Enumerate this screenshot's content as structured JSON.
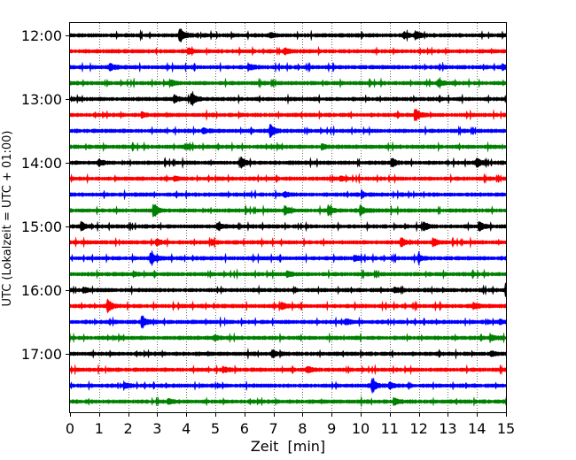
{
  "chart_data": {
    "type": "line",
    "title": "",
    "xlabel": "Zeit  [min]",
    "ylabel": "UTC (Lokalzeit = UTC + 01:00)",
    "xlim": [
      0,
      15
    ],
    "x_ticks": [
      0,
      1,
      2,
      3,
      4,
      5,
      6,
      7,
      8,
      9,
      10,
      11,
      12,
      13,
      14,
      15
    ],
    "y_tick_labels": [
      "12:00",
      "13:00",
      "14:00",
      "15:00",
      "16:00",
      "17:00"
    ],
    "grid": "vertical dotted at each minute",
    "trace_interval_min": 15,
    "trace_colors": [
      "#000000",
      "#ff0000",
      "#0000ff",
      "#008000"
    ],
    "series": [
      {
        "start": "12:00",
        "color": "#000000",
        "events": [
          [
            3.8,
            1.0
          ],
          [
            11.9,
            0.6
          ],
          [
            6.9,
            0.35
          ],
          [
            11.5,
            0.4
          ]
        ]
      },
      {
        "start": "12:15",
        "color": "#ff0000",
        "events": [
          [
            7.4,
            0.35
          ],
          [
            4.1,
            0.3
          ]
        ]
      },
      {
        "start": "12:30",
        "color": "#0000ff",
        "events": [
          [
            1.4,
            0.4
          ],
          [
            14.9,
            0.4
          ],
          [
            6.2,
            0.3
          ]
        ]
      },
      {
        "start": "12:45",
        "color": "#008000",
        "events": [
          [
            12.7,
            0.4
          ],
          [
            3.5,
            0.3
          ]
        ]
      },
      {
        "start": "13:00",
        "color": "#000000",
        "events": [
          [
            4.2,
            0.8
          ],
          [
            3.6,
            0.5
          ]
        ]
      },
      {
        "start": "13:15",
        "color": "#ff0000",
        "events": [
          [
            11.9,
            0.9
          ],
          [
            2.5,
            0.3
          ]
        ]
      },
      {
        "start": "13:30",
        "color": "#0000ff",
        "events": [
          [
            6.9,
            1.0
          ],
          [
            4.6,
            0.3
          ]
        ]
      },
      {
        "start": "13:45",
        "color": "#008000",
        "events": [
          [
            4.0,
            0.3
          ],
          [
            8.7,
            0.3
          ]
        ]
      },
      {
        "start": "14:00",
        "color": "#000000",
        "events": [
          [
            5.9,
            0.7
          ],
          [
            14.0,
            0.7
          ],
          [
            11.1,
            0.5
          ],
          [
            1.0,
            0.4
          ]
        ]
      },
      {
        "start": "14:15",
        "color": "#ff0000",
        "events": [
          [
            3.6,
            0.3
          ],
          [
            9.3,
            0.3
          ]
        ]
      },
      {
        "start": "14:30",
        "color": "#0000ff",
        "events": [
          [
            7.4,
            0.3
          ]
        ]
      },
      {
        "start": "14:45",
        "color": "#008000",
        "events": [
          [
            2.9,
            0.9
          ],
          [
            8.9,
            0.7
          ],
          [
            10.0,
            0.7
          ],
          [
            7.4,
            0.6
          ]
        ]
      },
      {
        "start": "15:00",
        "color": "#000000",
        "events": [
          [
            0.4,
            0.6
          ],
          [
            14.1,
            0.7
          ],
          [
            5.1,
            0.4
          ],
          [
            12.2,
            0.5
          ]
        ]
      },
      {
        "start": "15:15",
        "color": "#ff0000",
        "events": [
          [
            11.4,
            0.7
          ],
          [
            12.5,
            0.5
          ],
          [
            3.0,
            0.4
          ],
          [
            4.9,
            0.3
          ]
        ]
      },
      {
        "start": "15:30",
        "color": "#0000ff",
        "events": [
          [
            2.8,
            0.8
          ],
          [
            9.8,
            0.4
          ],
          [
            12.0,
            0.4
          ]
        ]
      },
      {
        "start": "15:45",
        "color": "#008000",
        "events": [
          [
            7.5,
            0.4
          ],
          [
            2.2,
            0.3
          ]
        ]
      },
      {
        "start": "16:00",
        "color": "#000000",
        "events": [
          [
            0.5,
            0.3
          ],
          [
            11.2,
            0.3
          ],
          [
            15.0,
            0.4
          ]
        ]
      },
      {
        "start": "16:15",
        "color": "#ff0000",
        "events": [
          [
            1.3,
            0.9
          ],
          [
            7.3,
            0.4
          ],
          [
            13.9,
            0.4
          ]
        ]
      },
      {
        "start": "16:30",
        "color": "#0000ff",
        "events": [
          [
            2.5,
            0.8
          ],
          [
            9.5,
            0.4
          ],
          [
            14.8,
            0.3
          ]
        ]
      },
      {
        "start": "16:45",
        "color": "#008000",
        "events": [
          [
            14.5,
            0.4
          ],
          [
            5.0,
            0.3
          ]
        ]
      },
      {
        "start": "17:00",
        "color": "#000000",
        "events": [
          [
            7.0,
            0.4
          ],
          [
            14.5,
            0.4
          ]
        ]
      },
      {
        "start": "17:15",
        "color": "#ff0000",
        "events": [
          [
            8.2,
            0.4
          ],
          [
            5.3,
            0.3
          ]
        ]
      },
      {
        "start": "17:30",
        "color": "#0000ff",
        "events": [
          [
            10.4,
            0.9
          ],
          [
            1.9,
            0.3
          ],
          [
            11.0,
            0.4
          ]
        ]
      },
      {
        "start": "17:45",
        "color": "#008000",
        "events": [
          [
            3.4,
            0.3
          ],
          [
            11.2,
            0.3
          ]
        ]
      }
    ]
  }
}
